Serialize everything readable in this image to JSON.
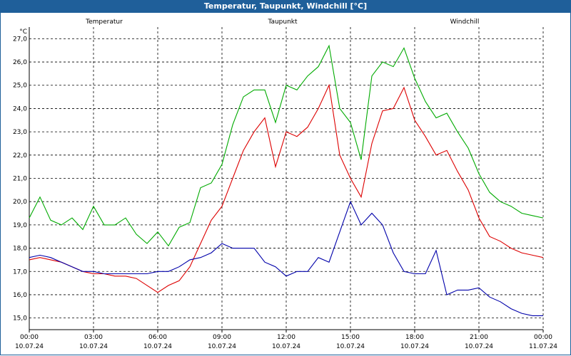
{
  "window": {
    "title": "Temperatur, Taupunkt, Windchill [°C]"
  },
  "chart_data": {
    "type": "line",
    "title": "Temperatur, Taupunkt, Windchill [°C]",
    "y_unit_label": "°C",
    "ylim": [
      14.5,
      27.5
    ],
    "y_ticks": [
      "15,0",
      "16,0",
      "17,0",
      "18,0",
      "19,0",
      "20,0",
      "21,0",
      "22,0",
      "23,0",
      "24,0",
      "25,0",
      "26,0",
      "27,0"
    ],
    "xlim": [
      0,
      24
    ],
    "x_ticks": [
      {
        "time": "00:00",
        "date": "10.07.24"
      },
      {
        "time": "03:00",
        "date": "10.07.24"
      },
      {
        "time": "06:00",
        "date": "10.07.24"
      },
      {
        "time": "09:00",
        "date": "10.07.24"
      },
      {
        "time": "12:00",
        "date": "10.07.24"
      },
      {
        "time": "15:00",
        "date": "10.07.24"
      },
      {
        "time": "18:00",
        "date": "10.07.24"
      },
      {
        "time": "21:00",
        "date": "10.07.24"
      },
      {
        "time": "00:00",
        "date": "11.07.24"
      }
    ],
    "grid": true,
    "colors": {
      "Temperatur": "#dd0000",
      "Taupunkt": "#0000aa",
      "Windchill": "#00aa00"
    },
    "series": [
      {
        "name": "Temperatur",
        "x": [
          0,
          0.5,
          1,
          1.5,
          2,
          2.5,
          3,
          3.5,
          4,
          4.5,
          5,
          5.5,
          6,
          6.5,
          7,
          7.5,
          8,
          8.5,
          9,
          9.5,
          10,
          10.5,
          11,
          11.5,
          12,
          12.5,
          13,
          13.5,
          14,
          14.5,
          15,
          15.5,
          16,
          16.5,
          17,
          17.5,
          18,
          18.5,
          19,
          19.5,
          20,
          20.5,
          21,
          21.5,
          22,
          22.5,
          23,
          23.5,
          24
        ],
        "y": [
          17.5,
          17.6,
          17.5,
          17.4,
          17.2,
          17.0,
          16.9,
          16.9,
          16.8,
          16.8,
          16.7,
          16.4,
          16.1,
          16.4,
          16.6,
          17.2,
          18.2,
          19.2,
          19.8,
          21.0,
          22.2,
          23.0,
          23.6,
          21.5,
          23.0,
          22.8,
          23.2,
          24.0,
          25.0,
          22.0,
          21.0,
          20.2,
          22.5,
          23.9,
          24.0,
          24.9,
          23.5,
          22.8,
          22.0,
          22.2,
          21.3,
          20.5,
          19.3,
          18.5,
          18.3,
          18.0,
          17.8,
          17.7,
          17.6
        ]
      },
      {
        "name": "Taupunkt",
        "x": [
          0,
          0.5,
          1,
          1.5,
          2,
          2.5,
          3,
          3.5,
          4,
          4.5,
          5,
          5.5,
          6,
          6.5,
          7,
          7.5,
          8,
          8.5,
          9,
          9.5,
          10,
          10.5,
          11,
          11.5,
          12,
          12.5,
          13,
          13.5,
          14,
          14.5,
          15,
          15.5,
          16,
          16.5,
          17,
          17.5,
          18,
          18.5,
          19,
          19.5,
          20,
          20.5,
          21,
          21.5,
          22,
          22.5,
          23,
          23.5,
          24
        ],
        "y": [
          17.6,
          17.7,
          17.6,
          17.4,
          17.2,
          17.0,
          17.0,
          16.9,
          16.9,
          16.9,
          16.9,
          16.9,
          17.0,
          17.0,
          17.2,
          17.5,
          17.6,
          17.8,
          18.2,
          18.0,
          18.0,
          18.0,
          17.4,
          17.2,
          16.8,
          17.0,
          17.0,
          17.6,
          17.4,
          18.7,
          20.0,
          19.0,
          19.5,
          19.0,
          17.8,
          17.0,
          16.9,
          16.9,
          17.9,
          16.0,
          16.2,
          16.2,
          16.3,
          15.9,
          15.7,
          15.4,
          15.2,
          15.1,
          15.1
        ]
      },
      {
        "name": "Windchill",
        "x": [
          0,
          0.5,
          1,
          1.5,
          2,
          2.5,
          3,
          3.5,
          4,
          4.5,
          5,
          5.5,
          6,
          6.5,
          7,
          7.5,
          8,
          8.5,
          9,
          9.5,
          10,
          10.5,
          11,
          11.5,
          12,
          12.5,
          13,
          13.5,
          14,
          14.5,
          15,
          15.5,
          16,
          16.5,
          17,
          17.5,
          18,
          18.5,
          19,
          19.5,
          20,
          20.5,
          21,
          21.5,
          22,
          22.5,
          23,
          23.5,
          24
        ],
        "y": [
          19.3,
          20.2,
          19.2,
          19.0,
          19.3,
          18.8,
          19.8,
          19.0,
          19.0,
          19.3,
          18.6,
          18.2,
          18.7,
          18.1,
          18.9,
          19.1,
          20.6,
          20.8,
          21.6,
          23.3,
          24.5,
          24.8,
          24.8,
          23.4,
          25.0,
          24.8,
          25.4,
          25.8,
          26.7,
          24.0,
          23.4,
          21.8,
          25.4,
          26.0,
          25.8,
          26.6,
          25.3,
          24.3,
          23.6,
          23.8,
          23.0,
          22.3,
          21.2,
          20.4,
          20.0,
          19.8,
          19.5,
          19.4,
          19.3
        ]
      }
    ]
  }
}
